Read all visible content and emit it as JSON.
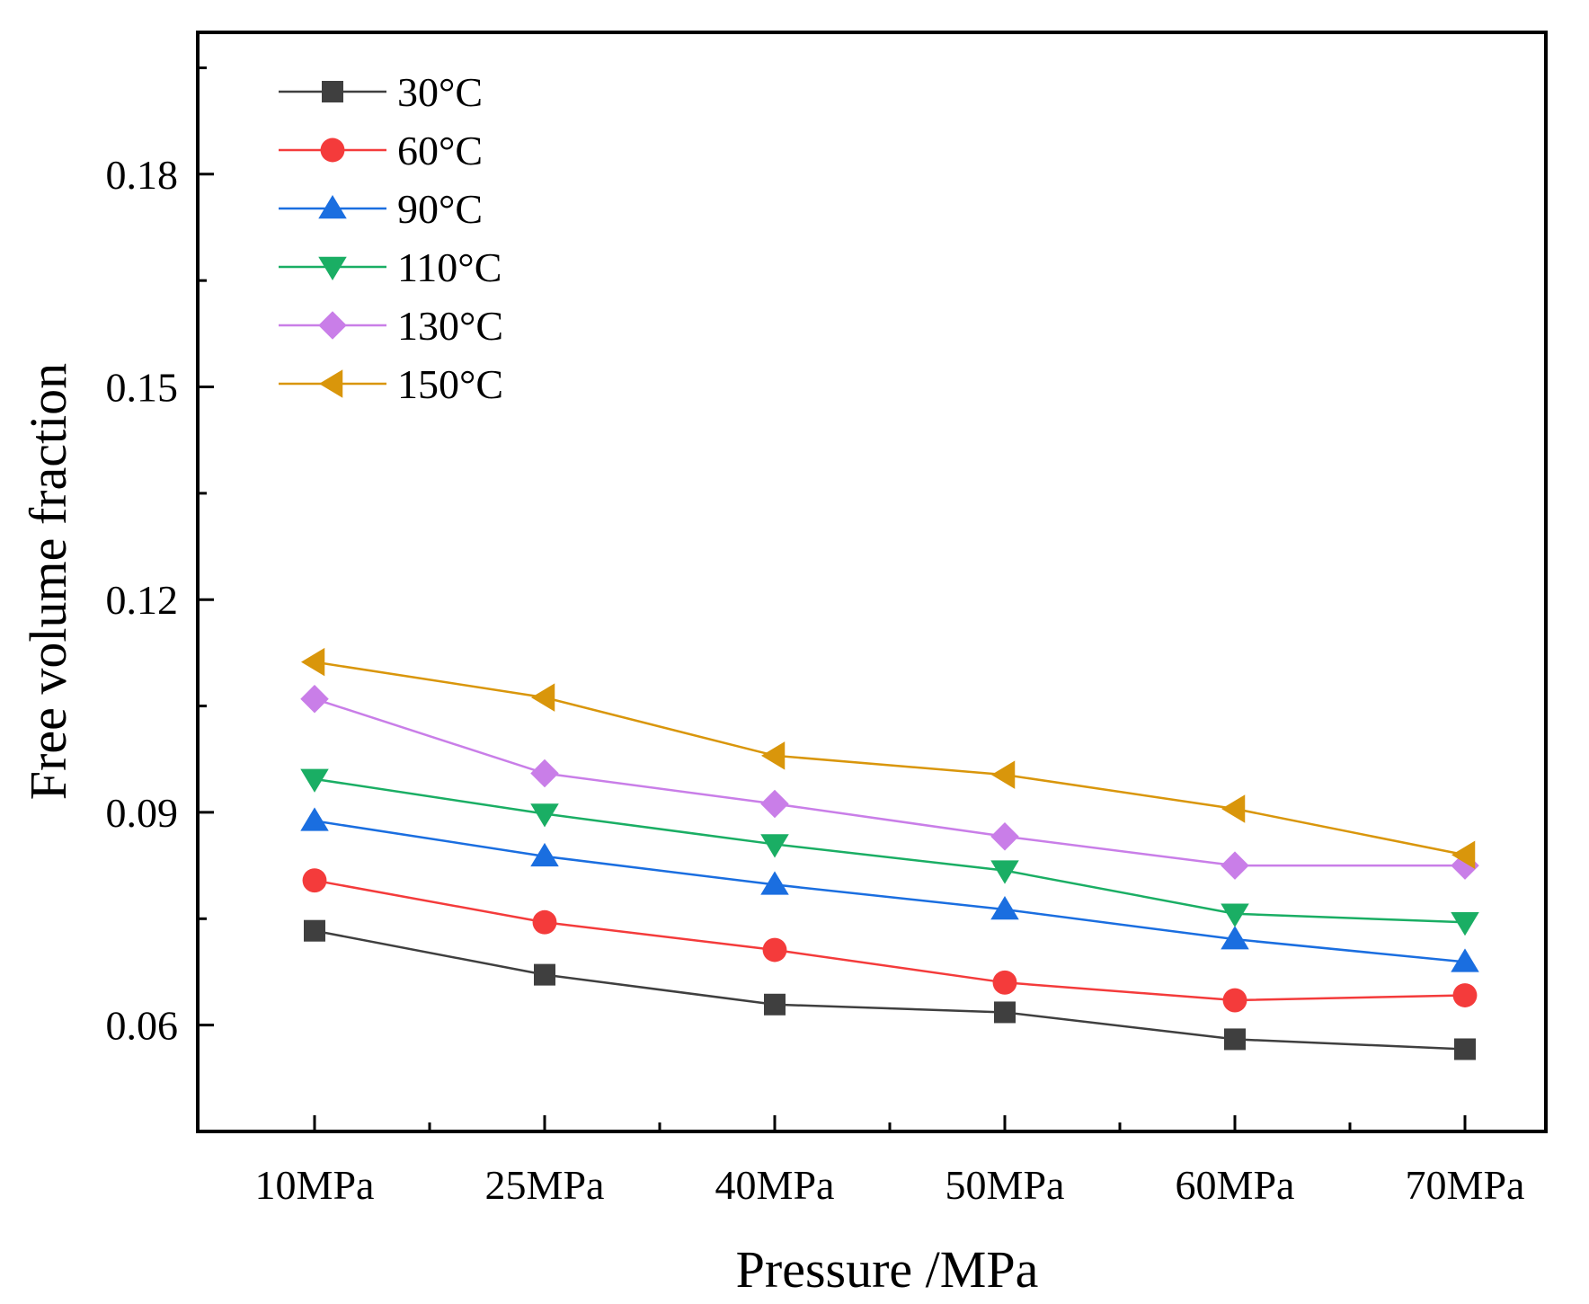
{
  "chart_data": {
    "type": "line",
    "title": "",
    "xlabel": "Pressure /MPa",
    "ylabel": "Free volume fraction",
    "categories": [
      "10MPa",
      "25MPa",
      "40MPa",
      "50MPa",
      "60MPa",
      "70MPa"
    ],
    "ylim": [
      0.045,
      0.2
    ],
    "yticks": [
      0.06,
      0.09,
      0.12,
      0.15,
      0.18
    ],
    "ytick_labels": [
      "0.06",
      "0.09",
      "0.12",
      "0.15",
      "0.18"
    ],
    "grid": false,
    "legend_position": "top-left",
    "series": [
      {
        "name": "30°C",
        "color": "#3f3f3f",
        "marker": "square",
        "values": [
          0.0733,
          0.0671,
          0.0629,
          0.0618,
          0.058,
          0.0566
        ]
      },
      {
        "name": "60°C",
        "color": "#f43b3b",
        "marker": "circle",
        "values": [
          0.0804,
          0.0745,
          0.0706,
          0.066,
          0.0635,
          0.0642
        ]
      },
      {
        "name": "90°C",
        "color": "#1a6ee0",
        "marker": "triangle-up",
        "values": [
          0.0888,
          0.0838,
          0.0798,
          0.0763,
          0.0721,
          0.0689
        ]
      },
      {
        "name": "110°C",
        "color": "#1aae64",
        "marker": "triangle-down",
        "values": [
          0.0947,
          0.0898,
          0.0855,
          0.0818,
          0.0757,
          0.0745
        ]
      },
      {
        "name": "130°C",
        "color": "#c97ee8",
        "marker": "diamond",
        "values": [
          0.106,
          0.0955,
          0.0912,
          0.0866,
          0.0825,
          0.0825
        ]
      },
      {
        "name": "150°C",
        "color": "#d9960b",
        "marker": "triangle-left",
        "values": [
          0.1112,
          0.1062,
          0.098,
          0.0953,
          0.0905,
          0.084
        ]
      }
    ]
  }
}
